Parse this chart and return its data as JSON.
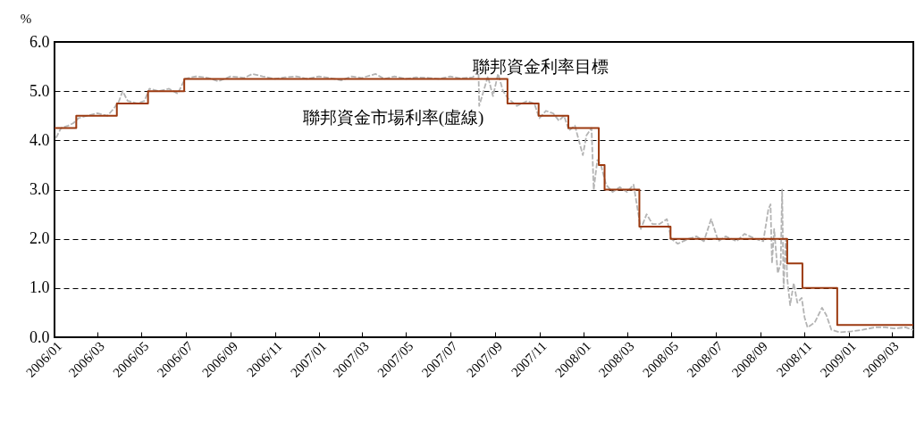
{
  "chart_data": {
    "type": "line",
    "ylabel": "%",
    "grid": "y",
    "xlim": [
      "2006-01-01",
      "2009-03-31"
    ],
    "xticks": [
      {
        "value": "2006-01",
        "label": "2006/01"
      },
      {
        "value": "2006-03",
        "label": "2006/03"
      },
      {
        "value": "2006-05",
        "label": "2006/05"
      },
      {
        "value": "2006-07",
        "label": "2006/07"
      },
      {
        "value": "2006-09",
        "label": "2006/09"
      },
      {
        "value": "2006-11",
        "label": "2006/11"
      },
      {
        "value": "2007-01",
        "label": "2007/01"
      },
      {
        "value": "2007-03",
        "label": "2007/03"
      },
      {
        "value": "2007-05",
        "label": "2007/05"
      },
      {
        "value": "2007-07",
        "label": "2007/07"
      },
      {
        "value": "2007-09",
        "label": "2007/09"
      },
      {
        "value": "2007-11",
        "label": "2007/11"
      },
      {
        "value": "2008-01",
        "label": "2008/01"
      },
      {
        "value": "2008-03",
        "label": "2008/03"
      },
      {
        "value": "2008-05",
        "label": "2008/05"
      },
      {
        "value": "2008-07",
        "label": "2008/07"
      },
      {
        "value": "2008-09",
        "label": "2008/09"
      },
      {
        "value": "2008-11",
        "label": "2008/11"
      },
      {
        "value": "2009-01",
        "label": "2009/01"
      },
      {
        "value": "2009-03",
        "label": "2009/03"
      }
    ],
    "ylim": [
      0,
      6
    ],
    "yticks": [
      {
        "value": 0,
        "label": "0.0"
      },
      {
        "value": 1,
        "label": "1.0"
      },
      {
        "value": 2,
        "label": "2.0"
      },
      {
        "value": 3,
        "label": "3.0"
      },
      {
        "value": 4,
        "label": "4.0"
      },
      {
        "value": 5,
        "label": "5.0"
      },
      {
        "value": 6,
        "label": "6.0"
      }
    ],
    "series": [
      {
        "name": "聯邦資金市場利率(虛線)",
        "line_style": "dashed",
        "color": "#b4b4b4",
        "x": [
          "2006-01-03",
          "2006-01-10",
          "2006-01-20",
          "2006-01-27",
          "2006-02-03",
          "2006-02-15",
          "2006-03-01",
          "2006-03-15",
          "2006-03-24",
          "2006-03-31",
          "2006-04-05",
          "2006-04-12",
          "2006-04-25",
          "2006-05-05",
          "2006-05-12",
          "2006-05-25",
          "2006-06-08",
          "2006-06-20",
          "2006-06-30",
          "2006-07-15",
          "2006-08-01",
          "2006-08-15",
          "2006-09-01",
          "2006-09-20",
          "2006-10-01",
          "2006-10-15",
          "2006-11-01",
          "2006-11-15",
          "2006-12-01",
          "2006-12-15",
          "2007-01-01",
          "2007-01-15",
          "2007-02-01",
          "2007-02-15",
          "2007-03-01",
          "2007-03-20",
          "2007-04-01",
          "2007-04-15",
          "2007-05-01",
          "2007-05-15",
          "2007-06-01",
          "2007-06-15",
          "2007-07-01",
          "2007-07-15",
          "2007-08-01",
          "2007-08-09",
          "2007-08-10",
          "2007-08-16",
          "2007-08-22",
          "2007-08-29",
          "2007-09-05",
          "2007-09-12",
          "2007-09-19",
          "2007-10-01",
          "2007-10-15",
          "2007-10-25",
          "2007-11-01",
          "2007-11-10",
          "2007-11-20",
          "2007-11-28",
          "2007-12-05",
          "2007-12-12",
          "2007-12-20",
          "2007-12-31",
          "2008-01-05",
          "2008-01-12",
          "2008-01-15",
          "2008-01-20",
          "2008-01-25",
          "2008-02-01",
          "2008-02-10",
          "2008-02-20",
          "2008-03-01",
          "2008-03-10",
          "2008-03-20",
          "2008-03-28",
          "2008-04-05",
          "2008-04-15",
          "2008-04-25",
          "2008-05-01",
          "2008-05-10",
          "2008-05-25",
          "2008-06-05",
          "2008-06-15",
          "2008-06-25",
          "2008-07-05",
          "2008-07-15",
          "2008-07-30",
          "2008-08-10",
          "2008-08-25",
          "2008-09-05",
          "2008-09-12",
          "2008-09-15",
          "2008-09-17",
          "2008-09-20",
          "2008-09-25",
          "2008-09-29",
          "2008-10-01",
          "2008-10-03",
          "2008-10-06",
          "2008-10-08",
          "2008-10-12",
          "2008-10-17",
          "2008-10-22",
          "2008-10-28",
          "2008-11-01",
          "2008-11-05",
          "2008-11-15",
          "2008-11-25",
          "2008-12-01",
          "2008-12-08",
          "2008-12-20",
          "2009-01-05",
          "2009-01-20",
          "2009-02-05",
          "2009-02-20",
          "2009-03-05",
          "2009-03-20",
          "2009-03-31"
        ],
        "values": [
          4.05,
          4.25,
          4.3,
          4.35,
          4.45,
          4.5,
          4.55,
          4.5,
          4.65,
          4.8,
          5.0,
          4.8,
          4.75,
          4.8,
          5.05,
          5.0,
          5.05,
          4.95,
          5.25,
          5.3,
          5.27,
          5.2,
          5.3,
          5.27,
          5.35,
          5.3,
          5.25,
          5.28,
          5.3,
          5.25,
          5.3,
          5.27,
          5.22,
          5.3,
          5.27,
          5.35,
          5.25,
          5.3,
          5.25,
          5.28,
          5.27,
          5.25,
          5.3,
          5.26,
          5.28,
          5.4,
          4.7,
          5.0,
          5.3,
          4.9,
          5.35,
          5.0,
          4.85,
          4.7,
          4.8,
          4.75,
          4.45,
          4.6,
          4.55,
          4.4,
          4.5,
          4.2,
          4.3,
          3.7,
          4.1,
          4.25,
          3.0,
          3.6,
          3.5,
          3.1,
          2.95,
          3.05,
          2.95,
          3.1,
          2.2,
          2.5,
          2.3,
          2.3,
          2.4,
          2.0,
          1.9,
          2.0,
          2.05,
          1.95,
          2.4,
          1.95,
          2.05,
          1.95,
          2.1,
          2.0,
          1.95,
          2.6,
          2.7,
          1.5,
          2.2,
          1.3,
          1.5,
          3.0,
          1.0,
          2.0,
          1.2,
          0.65,
          1.1,
          0.7,
          0.8,
          0.4,
          0.2,
          0.3,
          0.6,
          0.45,
          0.15,
          0.1,
          0.12,
          0.15,
          0.2,
          0.2,
          0.18,
          0.2,
          0.15
        ]
      },
      {
        "name": "聯邦資金利率目標",
        "type": "step",
        "line_style": "solid",
        "color": "#9c3a10",
        "x": [
          "2006-01-01",
          "2006-01-31",
          "2006-03-28",
          "2006-05-10",
          "2006-06-29",
          "2007-09-18",
          "2007-10-31",
          "2007-12-11",
          "2008-01-22",
          "2008-01-30",
          "2008-03-18",
          "2008-04-30",
          "2008-10-08",
          "2008-10-29",
          "2008-12-16",
          "2009-03-31"
        ],
        "values": [
          4.25,
          4.5,
          4.75,
          5.0,
          5.25,
          4.75,
          4.5,
          4.25,
          3.5,
          3.0,
          2.25,
          2.0,
          1.5,
          1.0,
          0.25,
          0.25
        ]
      }
    ]
  }
}
